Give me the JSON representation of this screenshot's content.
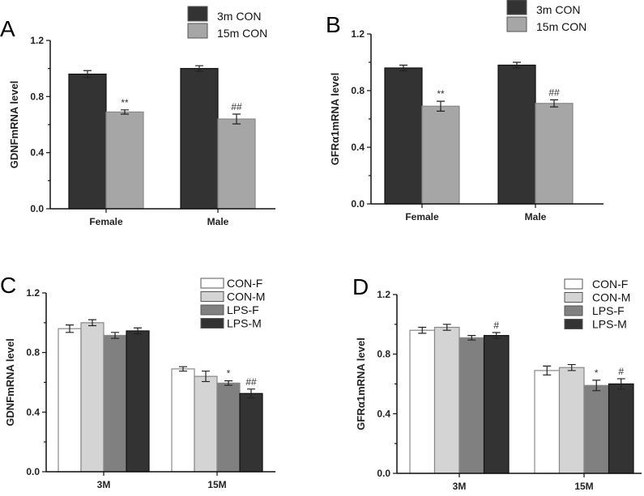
{
  "chart_data": [
    {
      "panel": "A",
      "type": "bar",
      "ylabel": "GDNFmRNA level",
      "ylim": [
        0,
        1.2
      ],
      "yticks": [
        "0.0",
        "0.4",
        "0.8",
        "1.2"
      ],
      "categories": [
        "Female",
        "Male"
      ],
      "series": [
        {
          "name": "3m CON",
          "color": "#333333",
          "values": [
            0.96,
            1.0
          ],
          "errors": [
            0.025,
            0.02
          ],
          "sig": [
            "",
            ""
          ]
        },
        {
          "name": "15m CON",
          "color": "#a6a6a6",
          "values": [
            0.69,
            0.64
          ],
          "errors": [
            0.015,
            0.035
          ],
          "sig": [
            "**",
            "##"
          ]
        }
      ]
    },
    {
      "panel": "B",
      "type": "bar",
      "ylabel": "GFRα1mRNA level",
      "ylim": [
        0,
        1.2
      ],
      "yticks": [
        "0.0",
        "0.4",
        "0.8",
        "1.2"
      ],
      "categories": [
        "Female",
        "Male"
      ],
      "series": [
        {
          "name": "3m CON",
          "color": "#333333",
          "values": [
            0.96,
            0.98
          ],
          "errors": [
            0.02,
            0.02
          ],
          "sig": [
            "",
            ""
          ]
        },
        {
          "name": "15m CON",
          "color": "#a6a6a6",
          "values": [
            0.69,
            0.71
          ],
          "errors": [
            0.035,
            0.025
          ],
          "sig": [
            "**",
            "##"
          ]
        }
      ]
    },
    {
      "panel": "C",
      "type": "bar",
      "ylabel": "GDNFmRNA level",
      "ylim": [
        0,
        1.2
      ],
      "yticks": [
        "0.0",
        "0.4",
        "0.8",
        "1.2"
      ],
      "categories": [
        "3M",
        "15M"
      ],
      "series": [
        {
          "name": "CON-F",
          "color": "#ffffff",
          "values": [
            0.96,
            0.69
          ],
          "errors": [
            0.025,
            0.015
          ],
          "sig": [
            "",
            ""
          ]
        },
        {
          "name": "CON-M",
          "color": "#d4d4d4",
          "values": [
            1.0,
            0.64
          ],
          "errors": [
            0.02,
            0.035
          ],
          "sig": [
            "",
            ""
          ]
        },
        {
          "name": "LPS-F",
          "color": "#808080",
          "values": [
            0.915,
            0.595
          ],
          "errors": [
            0.02,
            0.015
          ],
          "sig": [
            "",
            "*"
          ]
        },
        {
          "name": "LPS-M",
          "color": "#333333",
          "values": [
            0.945,
            0.525
          ],
          "errors": [
            0.02,
            0.03
          ],
          "sig": [
            "",
            "##"
          ]
        }
      ]
    },
    {
      "panel": "D",
      "type": "bar",
      "ylabel": "GFRα1mRNA level",
      "ylim": [
        0,
        1.2
      ],
      "yticks": [
        "0.0",
        "0.4",
        "0.8",
        "1.2"
      ],
      "categories": [
        "3M",
        "15M"
      ],
      "series": [
        {
          "name": "CON-F",
          "color": "#ffffff",
          "values": [
            0.96,
            0.69
          ],
          "errors": [
            0.02,
            0.03
          ],
          "sig": [
            "",
            ""
          ]
        },
        {
          "name": "CON-M",
          "color": "#d4d4d4",
          "values": [
            0.98,
            0.71
          ],
          "errors": [
            0.02,
            0.02
          ],
          "sig": [
            "",
            ""
          ]
        },
        {
          "name": "LPS-F",
          "color": "#808080",
          "values": [
            0.91,
            0.59
          ],
          "errors": [
            0.015,
            0.035
          ],
          "sig": [
            "",
            "*"
          ]
        },
        {
          "name": "LPS-M",
          "color": "#333333",
          "values": [
            0.925,
            0.6
          ],
          "errors": [
            0.02,
            0.035
          ],
          "sig": [
            "#",
            "#"
          ]
        }
      ]
    }
  ]
}
